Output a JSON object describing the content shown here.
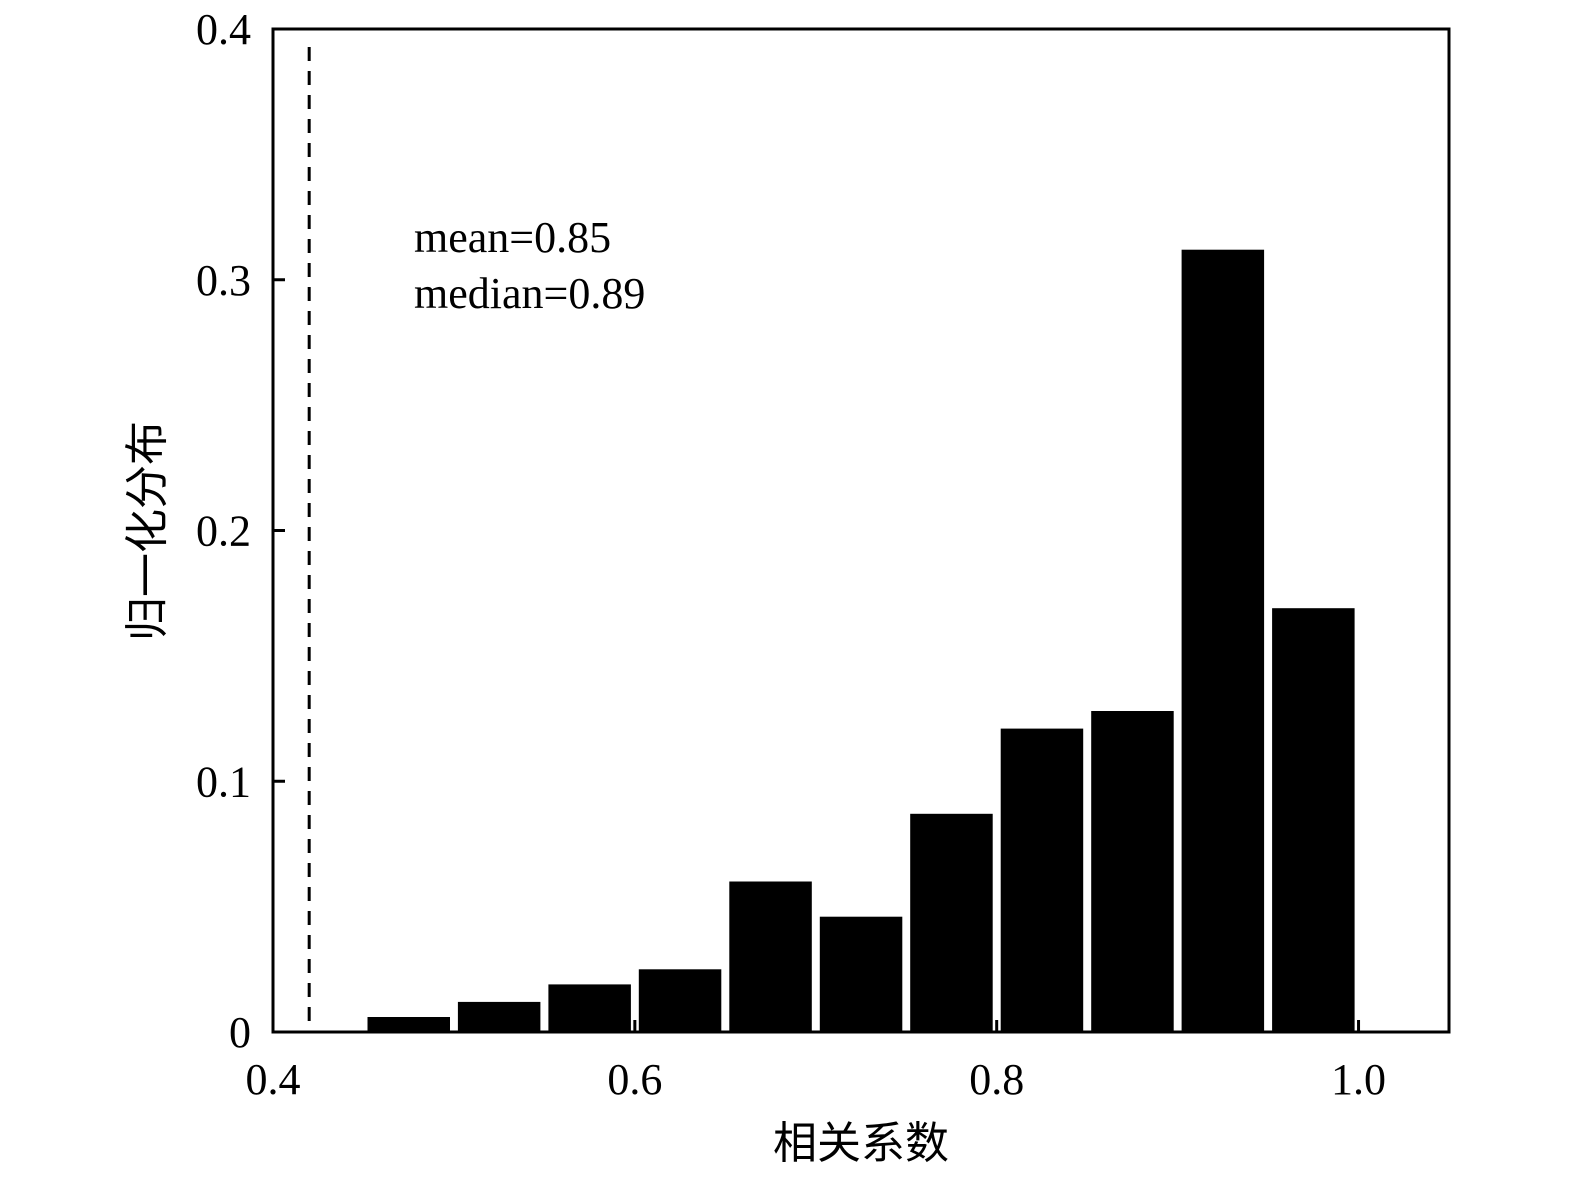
{
  "chart_data": {
    "type": "bar",
    "bin_width": 0.05,
    "x": [
      0.475,
      0.525,
      0.575,
      0.625,
      0.675,
      0.725,
      0.775,
      0.825,
      0.875,
      0.925,
      0.975
    ],
    "values": [
      0.006,
      0.012,
      0.019,
      0.025,
      0.06,
      0.046,
      0.087,
      0.121,
      0.128,
      0.312,
      0.169
    ],
    "xlabel": "相关系数",
    "ylabel": "归一化分布",
    "xlim": [
      0.4,
      1.05
    ],
    "ylim": [
      0,
      0.4
    ],
    "xticks": [
      0.4,
      0.6,
      0.8,
      1.0
    ],
    "xtick_labels": [
      "0.4",
      "0.6",
      "0.8",
      "1.0"
    ],
    "yticks": [
      0,
      0.1,
      0.2,
      0.3,
      0.4
    ],
    "ytick_labels": [
      "0",
      "0.1",
      "0.2",
      "0.3",
      "0.4"
    ],
    "reference_line": {
      "x": 0.42,
      "style": "dashed"
    },
    "annotations": [
      "mean=0.85",
      "median=0.89"
    ],
    "bar_color": "#000000",
    "grid": false
  }
}
